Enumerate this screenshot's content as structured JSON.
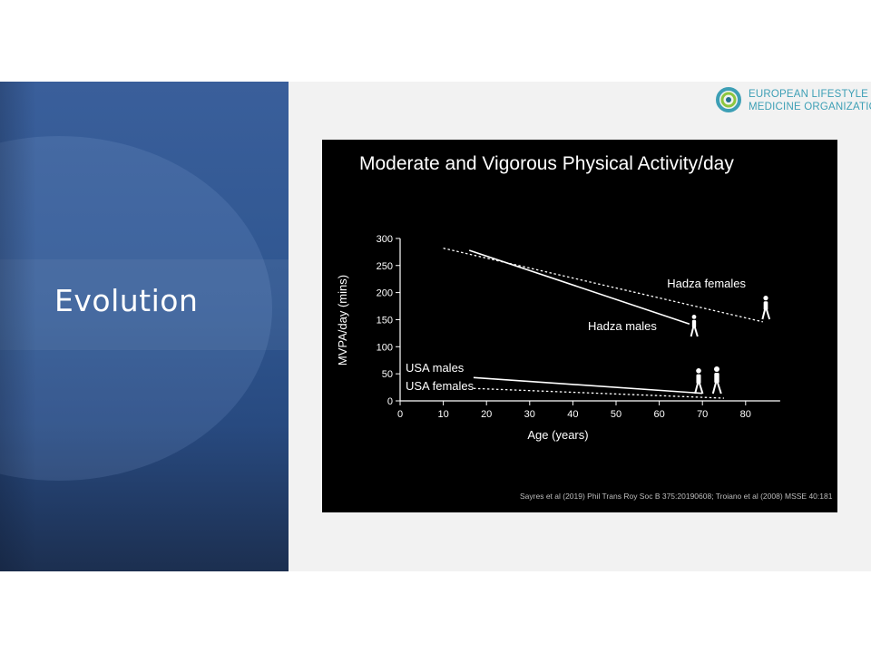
{
  "slide": {
    "title": "Evolution"
  },
  "logo": {
    "line1": "EUROPEAN LIFESTYLE",
    "line2": "MEDICINE ORGANIZATION"
  },
  "source_note": "Sayres et al (2019) Phil Trans Roy Soc B 375:20190608; Troiano et al (2008) MSSE 40:181",
  "colors": {
    "panel_blue": "#2f5690",
    "chart_bg": "#000000",
    "logo_teal": "#3d9fb5"
  },
  "chart_data": {
    "type": "line",
    "title": "Moderate and Vigorous Physical Activity/day",
    "xlabel": "Age (years)",
    "ylabel": "MVPA/day (mins)",
    "xlim": [
      0,
      88
    ],
    "ylim": [
      0,
      300
    ],
    "xticks": [
      0,
      10,
      20,
      30,
      40,
      50,
      60,
      70,
      80
    ],
    "yticks": [
      0,
      50,
      100,
      150,
      200,
      250,
      300
    ],
    "grid": false,
    "legend": "none",
    "series": [
      {
        "name": "Hadza males",
        "style": "solid",
        "x": [
          16,
          67
        ],
        "y": [
          278,
          142
        ]
      },
      {
        "name": "Hadza females",
        "style": "dotted",
        "x": [
          10,
          84
        ],
        "y": [
          282,
          146
        ]
      },
      {
        "name": "USA males",
        "style": "solid",
        "x": [
          17,
          70
        ],
        "y": [
          43,
          14
        ]
      },
      {
        "name": "USA females",
        "style": "dotted",
        "x": [
          17,
          75
        ],
        "y": [
          23,
          5
        ]
      }
    ]
  }
}
